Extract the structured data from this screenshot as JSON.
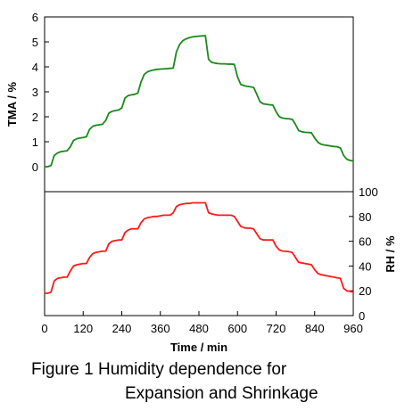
{
  "chart_data": [
    {
      "type": "line",
      "panel": "top",
      "title": "",
      "xlabel": "Time / min",
      "ylabel": "TMA / %",
      "xlim": [
        0,
        960
      ],
      "ylim": [
        -1,
        6
      ],
      "yticks": [
        0,
        1,
        2,
        3,
        4,
        5,
        6
      ],
      "grid": false,
      "color": "#1a8a1a",
      "series": [
        {
          "x": [
            0,
            10,
            20,
            30,
            40,
            50,
            60,
            70,
            80,
            90,
            100,
            110,
            120,
            130,
            140,
            150,
            160,
            170,
            180,
            190,
            200,
            210,
            220,
            230,
            240,
            250,
            260,
            270,
            280,
            290,
            300,
            310,
            320,
            330,
            340,
            350,
            360,
            370,
            380,
            390,
            400,
            410,
            420,
            430,
            440,
            450,
            460,
            470,
            480,
            490,
            500,
            510,
            520,
            530,
            540,
            550,
            560,
            570,
            580,
            590,
            600,
            610,
            620,
            630,
            640,
            650,
            660,
            670,
            680,
            690,
            700,
            710,
            720,
            730,
            740,
            750,
            760,
            770,
            780,
            790,
            800,
            810,
            820,
            830,
            840,
            850,
            860,
            870,
            880,
            890,
            900,
            910,
            920,
            930,
            940,
            950,
            960
          ],
          "values": [
            0.0,
            0.0,
            0.05,
            0.45,
            0.55,
            0.6,
            0.62,
            0.64,
            0.8,
            1.05,
            1.12,
            1.15,
            1.17,
            1.2,
            1.5,
            1.62,
            1.66,
            1.68,
            1.7,
            1.85,
            2.15,
            2.22,
            2.25,
            2.27,
            2.35,
            2.75,
            2.85,
            2.88,
            2.9,
            2.95,
            3.4,
            3.7,
            3.8,
            3.85,
            3.88,
            3.9,
            3.91,
            3.92,
            3.93,
            3.94,
            3.95,
            4.6,
            4.9,
            5.05,
            5.12,
            5.17,
            5.2,
            5.22,
            5.23,
            5.24,
            5.25,
            4.3,
            4.18,
            4.15,
            4.13,
            4.12,
            4.12,
            4.11,
            4.11,
            4.1,
            3.6,
            3.3,
            3.25,
            3.22,
            3.2,
            3.18,
            2.9,
            2.6,
            2.52,
            2.5,
            2.48,
            2.47,
            2.2,
            2.0,
            1.95,
            1.93,
            1.92,
            1.9,
            1.7,
            1.45,
            1.4,
            1.38,
            1.37,
            1.36,
            1.15,
            0.98,
            0.9,
            0.87,
            0.85,
            0.83,
            0.81,
            0.8,
            0.75,
            0.45,
            0.3,
            0.25,
            0.23
          ]
        }
      ]
    },
    {
      "type": "line",
      "panel": "bottom",
      "title": "",
      "xlabel": "Time / min",
      "ylabel": "RH / %",
      "xlim": [
        0,
        960
      ],
      "ylim": [
        0,
        100
      ],
      "xticks": [
        0,
        120,
        240,
        360,
        480,
        600,
        720,
        840,
        960
      ],
      "yticks": [
        0,
        20,
        40,
        60,
        80,
        100
      ],
      "grid": false,
      "color": "#ff1a1a",
      "series": [
        {
          "x": [
            0,
            10,
            20,
            30,
            40,
            50,
            60,
            70,
            80,
            90,
            100,
            110,
            120,
            130,
            140,
            150,
            160,
            170,
            180,
            190,
            200,
            210,
            220,
            230,
            240,
            250,
            260,
            270,
            280,
            290,
            300,
            310,
            320,
            330,
            340,
            350,
            360,
            370,
            380,
            390,
            400,
            410,
            420,
            430,
            440,
            450,
            460,
            470,
            480,
            490,
            500,
            510,
            520,
            530,
            540,
            550,
            560,
            570,
            580,
            590,
            600,
            610,
            620,
            630,
            640,
            650,
            660,
            670,
            680,
            690,
            700,
            710,
            720,
            730,
            740,
            750,
            760,
            770,
            780,
            790,
            800,
            810,
            820,
            830,
            840,
            850,
            860,
            870,
            880,
            890,
            900,
            910,
            920,
            930,
            940,
            950,
            960
          ],
          "values": [
            18,
            18,
            19,
            28,
            30,
            30.5,
            31,
            31,
            36,
            40,
            41,
            41.5,
            42,
            42,
            47,
            50,
            51,
            51.5,
            52,
            52,
            58,
            60,
            60.5,
            61,
            61,
            67,
            69,
            70,
            70,
            70,
            75,
            78,
            79,
            79.5,
            80,
            80,
            80.5,
            81,
            81,
            81,
            83,
            88,
            89.5,
            90,
            90.5,
            90.5,
            91,
            91,
            91,
            91,
            91,
            83,
            82,
            81.5,
            81,
            81,
            81,
            81,
            81,
            80,
            76,
            72,
            71,
            70.5,
            70.5,
            70,
            66,
            62,
            61,
            61,
            61,
            61,
            56,
            53,
            52,
            52,
            51.5,
            51,
            47,
            43,
            42.5,
            42,
            41.5,
            41,
            37,
            34,
            33,
            32.5,
            32,
            31.5,
            31,
            30.5,
            30,
            22,
            20,
            19.5,
            19
          ]
        }
      ]
    }
  ],
  "caption": {
    "line1": "Figure 1  Humidity dependence for",
    "line2": "Expansion and Shrinkage"
  }
}
